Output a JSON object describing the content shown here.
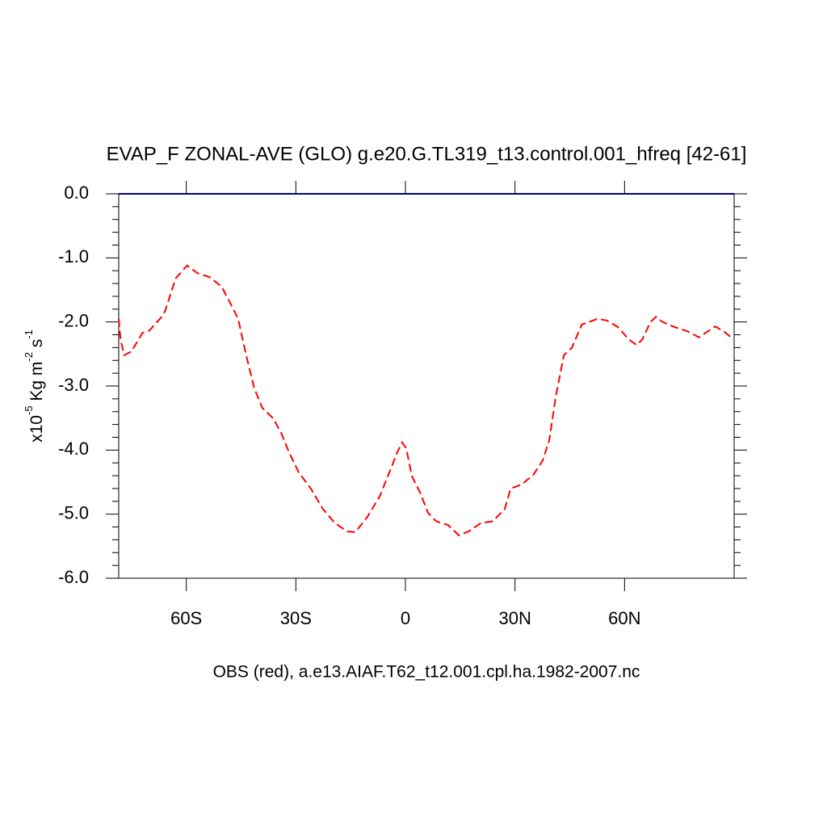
{
  "chart_data": {
    "type": "line",
    "title": "EVAP_F ZONAL-AVE (GLO) g.e20.G.TL319_t13.control.001_hfreq [42-61]",
    "subtitle": "OBS (red), a.e13.AIAF.T62_t12.001.cpl.ha.1982-2007.nc",
    "ylabel_parts": [
      "x10",
      "-5",
      " Kg m",
      "-2",
      " s",
      "-1"
    ],
    "xlim": [
      -78.5,
      90
    ],
    "xticks": [
      {
        "value": -60,
        "label": "60S"
      },
      {
        "value": -30,
        "label": "30S"
      },
      {
        "value": 0,
        "label": "0"
      },
      {
        "value": 30,
        "label": "30N"
      },
      {
        "value": 60,
        "label": "60N"
      }
    ],
    "ylim": [
      -6,
      0
    ],
    "yticks": [
      {
        "value": 0,
        "label": "0.0"
      },
      {
        "value": -1,
        "label": "-1.0"
      },
      {
        "value": -2,
        "label": "-2.0"
      },
      {
        "value": -3,
        "label": "-3.0"
      },
      {
        "value": -4,
        "label": "-4.0"
      },
      {
        "value": -5,
        "label": "-5.0"
      },
      {
        "value": -6,
        "label": "-6.0"
      }
    ],
    "series": [
      {
        "color": "#000080",
        "dash": false,
        "x": [
          -78.5,
          90
        ],
        "values": [
          0,
          0
        ]
      },
      {
        "color": "#ff0000",
        "dash": true,
        "x": [
          -78.5,
          -78,
          -77,
          -75,
          -72,
          -70.2,
          -66.9,
          -65.8,
          -62.9,
          -59.8,
          -56.9,
          -53.6,
          -50.3,
          -48,
          -45.8,
          -43.6,
          -41.4,
          -39.2,
          -36.3,
          -34.1,
          -31.9,
          -29.2,
          -25.9,
          -22.6,
          -19.3,
          -15.9,
          -13.7,
          -10.4,
          -7.1,
          -4.4,
          -2.2,
          -0.9,
          0.2,
          1.8,
          4,
          6.2,
          8.4,
          11.7,
          14.6,
          17.3,
          20.6,
          23.9,
          27.2,
          28.8,
          31.7,
          35,
          37.6,
          39.4,
          41.2,
          43.4,
          45.6,
          48.3,
          52.7,
          55.3,
          58.2,
          61.1,
          63.3,
          64.9,
          67.1,
          68.6,
          70.4,
          73.7,
          77,
          80.4,
          84.8,
          87,
          89.2
        ],
        "values": [
          -1.95,
          -2.27,
          -2.52,
          -2.46,
          -2.17,
          -2.14,
          -1.93,
          -1.83,
          -1.32,
          -1.12,
          -1.24,
          -1.3,
          -1.45,
          -1.7,
          -1.95,
          -2.52,
          -3.03,
          -3.34,
          -3.5,
          -3.72,
          -4.03,
          -4.35,
          -4.6,
          -4.92,
          -5.14,
          -5.27,
          -5.28,
          -5.04,
          -4.73,
          -4.35,
          -4.03,
          -3.88,
          -3.97,
          -4.41,
          -4.66,
          -4.98,
          -5.11,
          -5.17,
          -5.33,
          -5.27,
          -5.14,
          -5.11,
          -4.92,
          -4.6,
          -4.54,
          -4.39,
          -4.16,
          -3.84,
          -3.15,
          -2.52,
          -2.4,
          -2.04,
          -1.95,
          -1.98,
          -2.08,
          -2.27,
          -2.36,
          -2.27,
          -2.0,
          -1.92,
          -2.0,
          -2.08,
          -2.14,
          -2.24,
          -2.07,
          -2.14,
          -2.24
        ]
      }
    ]
  }
}
